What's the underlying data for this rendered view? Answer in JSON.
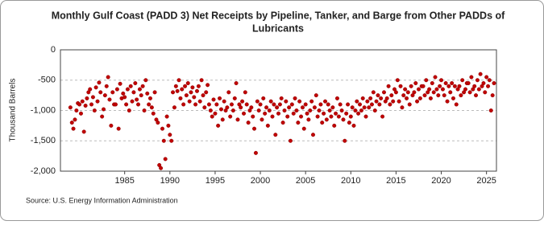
{
  "chart_data": {
    "type": "scatter",
    "title": [
      "Monthly Gulf Coast (PADD 3) Net Receipts by Pipeline, Tanker, and Barge from Other PADDs of",
      "Lubricants"
    ],
    "y_label": "Thousand Barrels",
    "source": "Source: U.S. Energy Information Administration",
    "xlim": [
      1977.9,
      2026.1
    ],
    "xticks": [
      1985,
      1990,
      1995,
      2000,
      2005,
      2010,
      2015,
      2020,
      2025
    ],
    "ylim": [
      -2000,
      0
    ],
    "yticks": [
      {
        "value": -2000,
        "label": "-2,000"
      },
      {
        "value": -1500,
        "label": "-1,500"
      },
      {
        "value": -1000,
        "label": "-1,000"
      },
      -500,
      0
    ],
    "grid": true,
    "series": [
      {
        "color": "#c00000",
        "x": [
          1979,
          1979.17,
          1979.33,
          1979.5,
          1979.67,
          1979.83,
          1980,
          1980.17,
          1980.33,
          1980.5,
          1980.67,
          1980.83,
          1981,
          1981.17,
          1981.33,
          1981.5,
          1981.67,
          1981.83,
          1982,
          1982.17,
          1982.33,
          1982.5,
          1982.67,
          1982.83,
          1983,
          1983.17,
          1983.33,
          1983.5,
          1983.67,
          1983.83,
          1984,
          1984.17,
          1984.33,
          1984.5,
          1984.67,
          1984.83,
          1985,
          1985.17,
          1985.33,
          1985.5,
          1985.67,
          1985.83,
          1986,
          1986.17,
          1986.33,
          1986.5,
          1986.67,
          1986.83,
          1987,
          1987.17,
          1987.33,
          1987.5,
          1987.67,
          1987.83,
          1988,
          1988.17,
          1988.33,
          1988.5,
          1988.67,
          1988.83,
          1989,
          1989.17,
          1989.33,
          1989.5,
          1989.67,
          1989.83,
          1990,
          1990.17,
          1990.33,
          1990.5,
          1990.67,
          1990.83,
          1991,
          1991.17,
          1991.33,
          1991.5,
          1991.67,
          1991.83,
          1992,
          1992.17,
          1992.33,
          1992.5,
          1992.67,
          1992.83,
          1993,
          1993.17,
          1993.33,
          1993.5,
          1993.67,
          1993.83,
          1994,
          1994.17,
          1994.33,
          1994.5,
          1994.67,
          1994.83,
          1995,
          1995.17,
          1995.33,
          1995.5,
          1995.67,
          1995.83,
          1996,
          1996.17,
          1996.33,
          1996.5,
          1996.67,
          1996.83,
          1997,
          1997.17,
          1997.33,
          1997.5,
          1997.67,
          1997.83,
          1998,
          1998.17,
          1998.33,
          1998.5,
          1998.67,
          1998.83,
          1999,
          1999.17,
          1999.33,
          1999.5,
          1999.67,
          1999.83,
          2000,
          2000.17,
          2000.33,
          2000.5,
          2000.67,
          2000.83,
          2001,
          2001.17,
          2001.33,
          2001.5,
          2001.67,
          2001.83,
          2002,
          2002.17,
          2002.33,
          2002.5,
          2002.67,
          2002.83,
          2003,
          2003.17,
          2003.33,
          2003.5,
          2003.67,
          2003.83,
          2004,
          2004.17,
          2004.33,
          2004.5,
          2004.67,
          2004.83,
          2005,
          2005.17,
          2005.33,
          2005.5,
          2005.67,
          2005.83,
          2006,
          2006.17,
          2006.33,
          2006.5,
          2006.67,
          2006.83,
          2007,
          2007.17,
          2007.33,
          2007.5,
          2007.67,
          2007.83,
          2008,
          2008.17,
          2008.33,
          2008.5,
          2008.67,
          2008.83,
          2009,
          2009.17,
          2009.33,
          2009.5,
          2009.67,
          2009.83,
          2010,
          2010.17,
          2010.33,
          2010.5,
          2010.67,
          2010.83,
          2011,
          2011.17,
          2011.33,
          2011.5,
          2011.67,
          2011.83,
          2012,
          2012.17,
          2012.33,
          2012.5,
          2012.67,
          2012.83,
          2013,
          2013.17,
          2013.33,
          2013.5,
          2013.67,
          2013.83,
          2014,
          2014.17,
          2014.33,
          2014.5,
          2014.67,
          2014.83,
          2015,
          2015.17,
          2015.33,
          2015.5,
          2015.67,
          2015.83,
          2016,
          2016.17,
          2016.33,
          2016.5,
          2016.67,
          2016.83,
          2017,
          2017.17,
          2017.33,
          2017.5,
          2017.67,
          2017.83,
          2018,
          2018.17,
          2018.33,
          2018.5,
          2018.67,
          2018.83,
          2019,
          2019.17,
          2019.33,
          2019.5,
          2019.67,
          2019.83,
          2020,
          2020.17,
          2020.33,
          2020.5,
          2020.67,
          2020.83,
          2021,
          2021.17,
          2021.33,
          2021.5,
          2021.67,
          2021.83,
          2022,
          2022.17,
          2022.33,
          2022.5,
          2022.67,
          2022.83,
          2023,
          2023.17,
          2023.33,
          2023.5,
          2023.67,
          2023.83,
          2024,
          2024.17,
          2024.33,
          2024.5,
          2024.67,
          2024.83,
          2025,
          2025.17,
          2025.33,
          2025.5,
          2025.67,
          2025.83
        ],
        "values": [
          -950,
          -1200,
          -1300,
          -1150,
          -1000,
          -880,
          -900,
          -1050,
          -850,
          -1350,
          -920,
          -800,
          -700,
          -650,
          -900,
          -780,
          -1000,
          -620,
          -850,
          -540,
          -700,
          -1100,
          -980,
          -750,
          -600,
          -450,
          -820,
          -1250,
          -700,
          -900,
          -900,
          -650,
          -1300,
          -560,
          -800,
          -720,
          -780,
          -900,
          -650,
          -1000,
          -600,
          -850,
          -700,
          -550,
          -820,
          -900,
          -650,
          -750,
          -600,
          -1000,
          -500,
          -720,
          -900,
          -800,
          -950,
          -1050,
          -700,
          -1150,
          -1200,
          -1900,
          -1950,
          -1300,
          -1500,
          -1800,
          -1100,
          -1250,
          -1400,
          -1500,
          -700,
          -950,
          -600,
          -680,
          -500,
          -800,
          -650,
          -900,
          -600,
          -750,
          -550,
          -850,
          -700,
          -620,
          -780,
          -900,
          -680,
          -600,
          -850,
          -500,
          -750,
          -950,
          -700,
          -580,
          -900,
          -1000,
          -1100,
          -820,
          -1050,
          -900,
          -1250,
          -800,
          -980,
          -1150,
          -850,
          -1000,
          -950,
          -700,
          -1100,
          -900,
          -1000,
          -800,
          -550,
          -1150,
          -900,
          -950,
          -850,
          -1050,
          -700,
          -900,
          -1200,
          -1000,
          -950,
          -1100,
          -1300,
          -1700,
          -850,
          -1000,
          -900,
          -1150,
          -800,
          -1050,
          -950,
          -1250,
          -1000,
          -850,
          -1100,
          -900,
          -1400,
          -950,
          -1050,
          -900,
          -800,
          -1200,
          -1000,
          -850,
          -1100,
          -950,
          -1500,
          -900,
          -1050,
          -800,
          -1000,
          -1200,
          -850,
          -1100,
          -950,
          -1300,
          -900,
          -1050,
          -1150,
          -1000,
          -850,
          -1400,
          -950,
          -750,
          -1100,
          -1000,
          -900,
          -1200,
          -1050,
          -850,
          -1150,
          -900,
          -1000,
          -1100,
          -950,
          -1250,
          -1050,
          -800,
          -1100,
          -900,
          -1000,
          -1150,
          -1500,
          -1050,
          -900,
          -1200,
          -1100,
          -950,
          -1250,
          -1000,
          -850,
          -1050,
          -900,
          -1000,
          -800,
          -950,
          -1100,
          -850,
          -950,
          -800,
          -900,
          -700,
          -1000,
          -850,
          -750,
          -900,
          -800,
          -1100,
          -700,
          -850,
          -800,
          -600,
          -900,
          -750,
          -850,
          -650,
          -700,
          -500,
          -850,
          -600,
          -950,
          -750,
          -650,
          -800,
          -700,
          -900,
          -600,
          -750,
          -700,
          -550,
          -850,
          -650,
          -800,
          -600,
          -600,
          -750,
          -500,
          -700,
          -650,
          -800,
          -550,
          -700,
          -450,
          -650,
          -750,
          -600,
          -500,
          -650,
          -750,
          -550,
          -850,
          -600,
          -700,
          -550,
          -800,
          -600,
          -900,
          -650,
          -600,
          -750,
          -500,
          -700,
          -650,
          -550,
          -550,
          -700,
          -450,
          -650,
          -600,
          -750,
          -500,
          -650,
          -400,
          -600,
          -550,
          -700,
          -450,
          -600,
          -500,
          -1000,
          -750,
          -550
        ]
      }
    ]
  }
}
